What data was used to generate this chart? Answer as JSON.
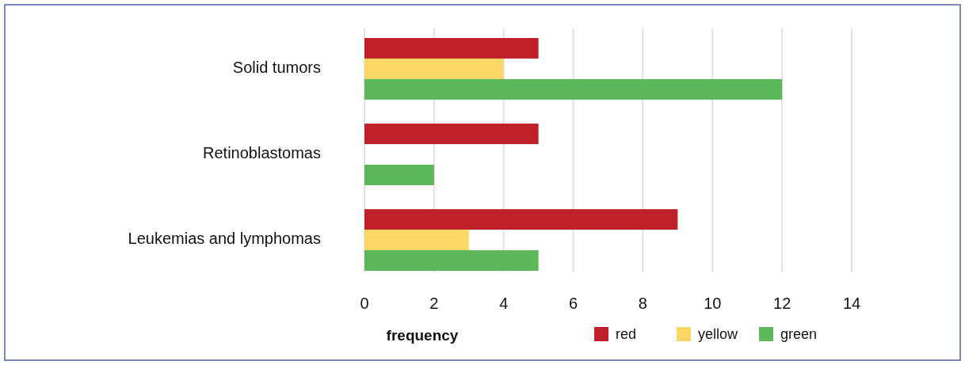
{
  "chart_data": {
    "type": "bar",
    "orientation": "horizontal",
    "xlabel": "frequency",
    "categories": [
      "Solid tumors",
      "Retinoblastomas",
      "Leukemias and lymphomas"
    ],
    "series": [
      {
        "name": "red",
        "color": "#c0202a",
        "values": [
          5,
          5,
          9
        ]
      },
      {
        "name": "yellow",
        "color": "#fdd766",
        "values": [
          4,
          0,
          3
        ]
      },
      {
        "name": "green",
        "color": "#5cb85a",
        "values": [
          12,
          2,
          5
        ]
      }
    ],
    "xlim": [
      0,
      14
    ],
    "xticks": [
      0,
      2,
      4,
      6,
      8,
      10,
      12,
      14
    ],
    "grid": "x",
    "legend": "bottom"
  }
}
